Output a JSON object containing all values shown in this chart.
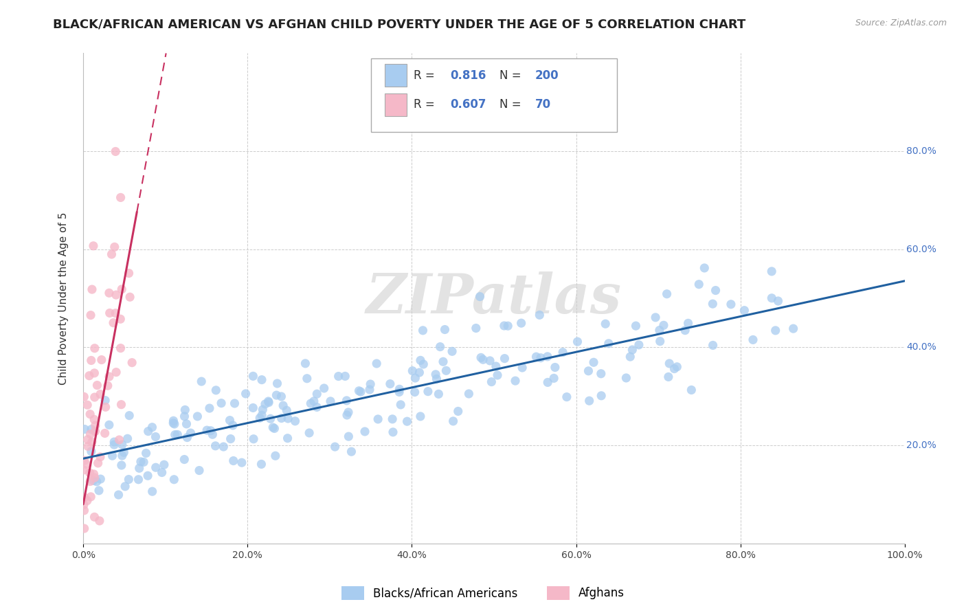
{
  "title": "BLACK/AFRICAN AMERICAN VS AFGHAN CHILD POVERTY UNDER THE AGE OF 5 CORRELATION CHART",
  "source": "Source: ZipAtlas.com",
  "ylabel": "Child Poverty Under the Age of 5",
  "xlim": [
    0,
    1.0
  ],
  "ylim": [
    0,
    1.0
  ],
  "blue_R": 0.816,
  "blue_N": 200,
  "pink_R": 0.607,
  "pink_N": 70,
  "blue_color": "#A8CCF0",
  "pink_color": "#F5B8C8",
  "blue_line_color": "#2060A0",
  "pink_line_color": "#C83060",
  "grid_color": "#CCCCCC",
  "watermark": "ZIPatlas",
  "legend_label_blue": "Blacks/African Americans",
  "legend_label_pink": "Afghans",
  "title_fontsize": 13,
  "axis_label_fontsize": 11,
  "ytick_color": "#4472C4",
  "xtick_color": "#444444"
}
